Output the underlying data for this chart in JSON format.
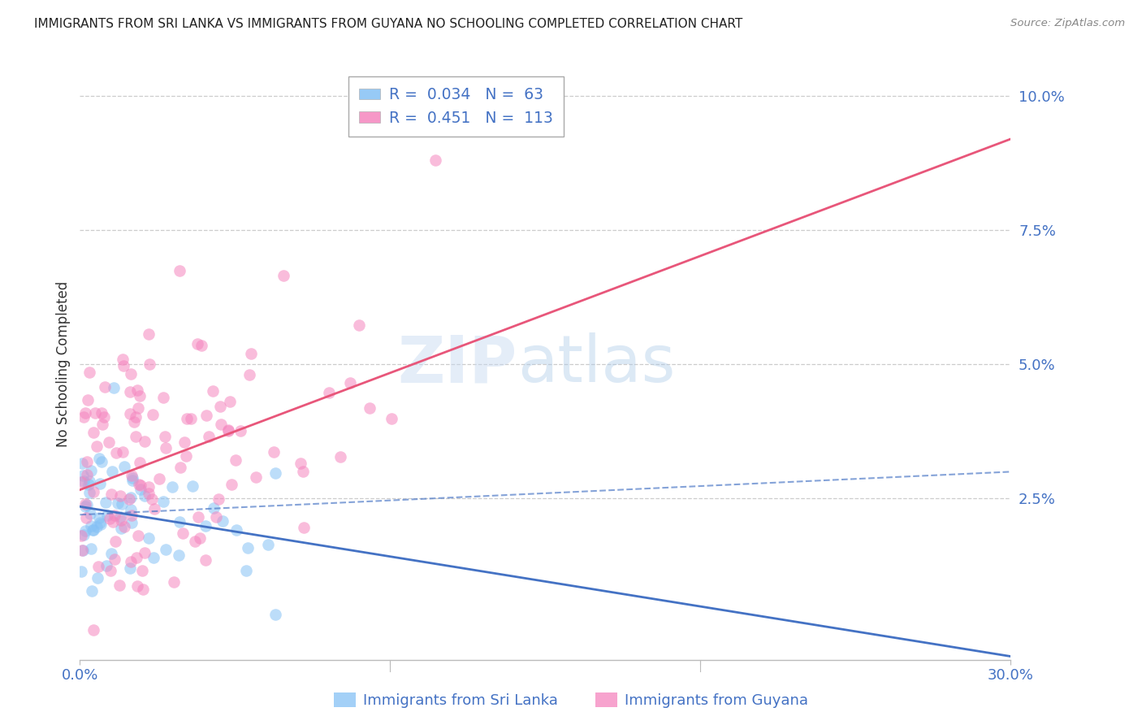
{
  "title": "IMMIGRANTS FROM SRI LANKA VS IMMIGRANTS FROM GUYANA NO SCHOOLING COMPLETED CORRELATION CHART",
  "source": "Source: ZipAtlas.com",
  "ylabel": "No Schooling Completed",
  "xlim": [
    0.0,
    0.3
  ],
  "ylim": [
    -0.005,
    0.105
  ],
  "sri_lanka_color": "#85C1F5",
  "guyana_color": "#F585BE",
  "sri_lanka_line_color": "#4472C4",
  "guyana_line_color": "#E8567A",
  "legend_R_sri": "0.034",
  "legend_N_sri": "63",
  "legend_R_guy": "0.451",
  "legend_N_guy": "113",
  "legend_color_text": "#4472C4",
  "background_color": "#FFFFFF",
  "grid_color": "#CCCCCC",
  "title_color": "#222222",
  "tick_label_color": "#4472C4",
  "watermark_zip_color": "#C5D8F0",
  "watermark_atlas_color": "#A8C8E8",
  "sri_lanka_seed": 42,
  "guyana_seed": 7,
  "sri_lanka_n": 63,
  "guyana_n": 113
}
